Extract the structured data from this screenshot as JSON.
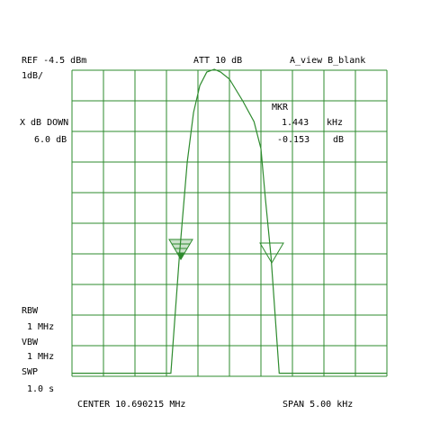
{
  "chart_data": {
    "type": "line",
    "color": "#2e8b2e",
    "grid": true,
    "xlim": [
      -2.5,
      2.5
    ],
    "ylim": [
      -14.5,
      -4.5
    ],
    "xticks": [
      -2.5,
      -2,
      -1.5,
      -1,
      -0.5,
      0,
      0.5,
      1,
      1.5,
      2,
      2.5
    ],
    "yticks": [
      -14.5,
      -13.5,
      -12.5,
      -11.5,
      -10.5,
      -9.5,
      -8.5,
      -7.5,
      -6.5,
      -5.5,
      -4.5
    ],
    "x": [
      -2.5,
      -0.93,
      -0.79,
      -0.67,
      -0.57,
      -0.47,
      -0.36,
      -0.24,
      -0.14,
      0,
      0.21,
      0.39,
      0.5,
      0.57,
      0.66,
      0.79,
      2.5
    ],
    "series": [
      {
        "values": [
          -14.4,
          -14.4,
          -10.44,
          -7.5,
          -5.88,
          -5.0,
          -4.56,
          -4.47,
          -4.56,
          -4.79,
          -5.5,
          -6.18,
          -7.06,
          -8.68,
          -10.59,
          -14.4,
          -14.4
        ]
      }
    ],
    "annotations": [
      "REF -4.5 dBm",
      "1dB/",
      "ATT 10 dB",
      "A_view B_blank",
      "MKR",
      "X dB DOWN",
      "1.443",
      "kHz",
      "6.0 dB",
      "-0.153",
      "dB",
      "RBW",
      "1 MHz",
      "VBW",
      "1 MHz",
      "SWP",
      "1.0 s",
      "CENTER 10.690215 MHz",
      "SPAN 5.00 kHz"
    ]
  }
}
